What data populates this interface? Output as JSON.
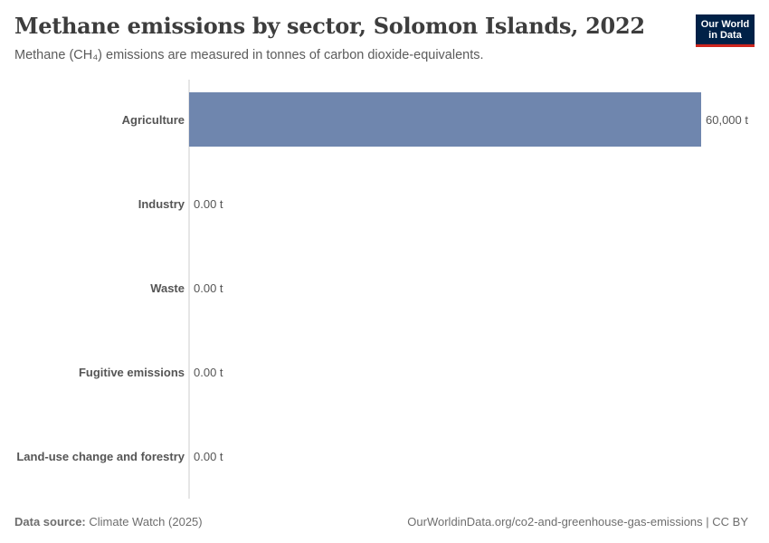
{
  "header": {
    "title": "Methane emissions by sector, Solomon Islands, 2022",
    "subtitle": "Methane (CH₄) emissions are measured in tonnes of carbon dioxide-equivalents.",
    "logo_line1": "Our World",
    "logo_line2": "in Data"
  },
  "footer": {
    "source_label": "Data source:",
    "source_value": "Climate Watch (2025)",
    "url": "OurWorldinData.org/co2-and-greenhouse-gas-emissions | CC BY"
  },
  "colors": {
    "bar": "#6f86ae",
    "axis": "#cccccc",
    "logo_bg": "#002147",
    "logo_accent": "#ce261e"
  },
  "chart_data": {
    "type": "bar",
    "orientation": "horizontal",
    "title": "Methane emissions by sector, Solomon Islands, 2022",
    "subtitle": "Methane (CH₄) emissions are measured in tonnes of carbon dioxide-equivalents.",
    "categories": [
      "Agriculture",
      "Industry",
      "Waste",
      "Fugitive emissions",
      "Land-use change and forestry"
    ],
    "values": [
      60000,
      0,
      0,
      0,
      0
    ],
    "value_labels": [
      "60,000 t",
      "0.00 t",
      "0.00 t",
      "0.00 t",
      "0.00 t"
    ],
    "xlim": [
      0,
      60000
    ],
    "grid": false,
    "legend": "none"
  }
}
